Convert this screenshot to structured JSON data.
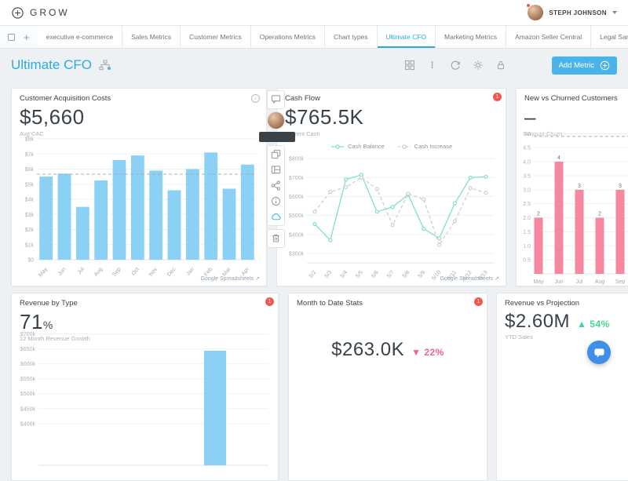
{
  "icons": {
    "plus": "+",
    "text_tool": "I",
    "external_link": "↗"
  },
  "colors": {
    "brand_blue": "#2ea9e0",
    "button_blue": "#4ab4ea",
    "bar_blue": "#8bd0f5",
    "bar_pink": "#f5879f",
    "line_green": "#7fe3c1",
    "line_gray": "#c9d0d6",
    "badge_red": "#f2574f",
    "positive_green": "#3fd88f",
    "negative_pink": "#f4608b",
    "chat_blue": "#3f8ee8"
  },
  "header": {
    "logo_text": "GROW",
    "user_name": "STEPH JOHNSON"
  },
  "tabs": {
    "add_tab": "+",
    "items": [
      {
        "label": "executive e-commerce"
      },
      {
        "label": "Sales Metrics"
      },
      {
        "label": "Customer Metrics"
      },
      {
        "label": "Operations Metrics"
      },
      {
        "label": "Chart types"
      },
      {
        "label": "Ultimate CFO",
        "active": true
      },
      {
        "label": "Marketing Metrics"
      },
      {
        "label": "Amazon Seller Central"
      },
      {
        "label": "Legal Sample"
      }
    ]
  },
  "page": {
    "title": "Ultimate CFO",
    "add_metric": "Add Metric"
  },
  "flyout": {
    "tooltip_text": ""
  },
  "cards": {
    "cac": {
      "title": "Customer Acquisition Costs",
      "value": "$5,660",
      "subtitle": "Avg CAC",
      "source": "Google Spreadsheets",
      "chart_data": {
        "type": "bar",
        "categories": [
          "May",
          "Jun",
          "Jul",
          "Aug",
          "Sep",
          "Oct",
          "Nov",
          "Dec",
          "Jan",
          "Feb",
          "Mar",
          "Apr"
        ],
        "values": [
          5500,
          5700,
          3500,
          5250,
          6600,
          6900,
          5900,
          4600,
          6000,
          7100,
          4700,
          6300
        ],
        "average_line": 5660,
        "ylim": [
          0,
          8000
        ],
        "ticks": [
          {
            "v": 8000,
            "label": "$8k"
          },
          {
            "v": 7000,
            "label": "$7k"
          },
          {
            "v": 6000,
            "label": "$6k"
          },
          {
            "v": 5000,
            "label": "$5k"
          },
          {
            "v": 4000,
            "label": "$4k"
          },
          {
            "v": 3000,
            "label": "$3k"
          },
          {
            "v": 2000,
            "label": "$2k"
          },
          {
            "v": 1000,
            "label": "$1k"
          },
          {
            "v": 0,
            "label": "$0"
          }
        ]
      }
    },
    "cash_flow": {
      "title": "Cash Flow",
      "badge": "1",
      "value": "$765.5K",
      "subtitle": "Current Cash",
      "source": "Google Spreadsheets",
      "chart_data": {
        "type": "line",
        "x": [
          "5/2",
          "5/3",
          "5/4",
          "5/5",
          "5/6",
          "5/7",
          "5/8",
          "5/9",
          "5/10",
          "5/11",
          "5/12",
          "5/13"
        ],
        "ylim": [
          250,
          830
        ],
        "ticks": [
          {
            "v": 800,
            "label": "$800k"
          },
          {
            "v": 700,
            "label": "$700k"
          },
          {
            "v": 600,
            "label": "$600k"
          },
          {
            "v": 500,
            "label": "$500k"
          },
          {
            "v": 400,
            "label": "$400k"
          },
          {
            "v": 300,
            "label": "$300k"
          }
        ],
        "series": [
          {
            "name": "Cash Balance",
            "color_key": "line_green",
            "dashed": false,
            "values": [
              455,
              370,
              690,
              715,
              520,
              545,
              610,
              430,
              380,
              565,
              700,
              705
            ]
          },
          {
            "name": "Cash Increase",
            "color_key": "line_gray",
            "dashed": true,
            "values": [
              520,
              625,
              650,
              700,
              640,
              450,
              615,
              585,
              345,
              470,
              645,
              620
            ]
          }
        ]
      }
    },
    "churn": {
      "title": "New vs Churned Customers",
      "value": "–",
      "subtitle": "Amount Churn",
      "chart_data": {
        "type": "bar",
        "categories": [
          "May",
          "Jun",
          "Jul",
          "Aug",
          "Sep"
        ],
        "values": [
          2,
          4,
          3,
          2,
          3
        ],
        "show_value_labels": true,
        "average_line": 4.9,
        "ylim": [
          0,
          5.15
        ],
        "ticks": [
          {
            "v": 5.0,
            "label": "5.0"
          },
          {
            "v": 4.5,
            "label": "4.5"
          },
          {
            "v": 4.0,
            "label": "4.0"
          },
          {
            "v": 3.5,
            "label": "3.5"
          },
          {
            "v": 3.0,
            "label": "3.0"
          },
          {
            "v": 2.5,
            "label": "2.5"
          },
          {
            "v": 2.0,
            "label": "2.0"
          },
          {
            "v": 1.5,
            "label": "1.5"
          },
          {
            "v": 1.0,
            "label": "1.0"
          },
          {
            "v": 0.5,
            "label": "0.5"
          }
        ]
      }
    },
    "revenue_by_type": {
      "title": "Revenue by Type",
      "badge": "1",
      "value": "71",
      "value_unit": "%",
      "subtitle": "12 Month Revenue Growth",
      "chart_data": {
        "type": "bar",
        "categories": [
          ""
        ],
        "values": [
          644
        ],
        "ylim": [
          260,
          715
        ],
        "ticks": [
          {
            "v": 700,
            "label": "$700k"
          },
          {
            "v": 650,
            "label": "$650k"
          },
          {
            "v": 600,
            "label": "$600k"
          },
          {
            "v": 550,
            "label": "$550k"
          },
          {
            "v": 500,
            "label": "$500k"
          },
          {
            "v": 450,
            "label": "$450k"
          },
          {
            "v": 400,
            "label": "$400k"
          }
        ]
      }
    },
    "month_to_date": {
      "title": "Month to Date Stats",
      "badge": "1",
      "value": "$263.0K",
      "delta_arrow": "▼",
      "delta": "22%"
    },
    "revenue_vs_projection": {
      "title": "Revenue vs Projection",
      "value": "$2.60M",
      "delta_arrow": "▲",
      "delta": "54%",
      "subtitle": "YTD Sales"
    }
  }
}
